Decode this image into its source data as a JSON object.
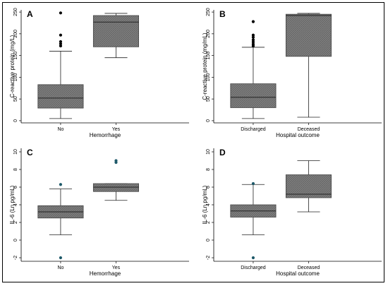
{
  "chart_data": [
    {
      "type": "box",
      "panel": "A",
      "ylabel": "C-reactive protein (mg/L)",
      "xlabel": "Hemorrhage",
      "ylim": [
        -5,
        255
      ],
      "yticks": [
        0,
        50,
        100,
        150,
        200,
        250
      ],
      "categories": [
        "No",
        "Yes"
      ],
      "boxes": [
        {
          "whisker_low": 5,
          "q1": 29,
          "median": 52,
          "q3": 83,
          "whisker_high": 160,
          "outliers": [
            172,
            177,
            182,
            197,
            248
          ]
        },
        {
          "whisker_low": 145,
          "q1": 170,
          "median": 227,
          "q3": 242,
          "whisker_high": 247,
          "outliers": []
        }
      ],
      "outlier_color": "#000000"
    },
    {
      "type": "box",
      "panel": "B",
      "ylabel": "C-reactive protein (mg/mL)",
      "xlabel": "Hospital outcome",
      "ylim": [
        -5,
        255
      ],
      "yticks": [
        0,
        50,
        100,
        150,
        200,
        250
      ],
      "categories": [
        "Discharged",
        "Deceased"
      ],
      "boxes": [
        {
          "whisker_low": 5,
          "q1": 30,
          "median": 54,
          "q3": 85,
          "whisker_high": 169,
          "outliers": [
            172,
            176,
            181,
            186,
            192,
            197,
            228
          ]
        },
        {
          "whisker_low": 8,
          "q1": 148,
          "median": 242,
          "q3": 245,
          "whisker_high": 247,
          "outliers": []
        }
      ],
      "outlier_color": "#000000"
    },
    {
      "type": "box",
      "panel": "C",
      "ylabel": "IL-6 (Ln pg/mL)",
      "xlabel": "Hemorrhage",
      "ylim": [
        -2.4,
        10.4
      ],
      "yticks": [
        -2,
        0,
        2,
        4,
        6,
        8,
        10
      ],
      "categories": [
        "No",
        "Yes"
      ],
      "boxes": [
        {
          "whisker_low": 0.6,
          "q1": 2.5,
          "median": 3.2,
          "q3": 3.9,
          "whisker_high": 5.8,
          "outliers": [
            -2.0,
            6.3
          ]
        },
        {
          "whisker_low": 4.5,
          "q1": 5.5,
          "median": 6.0,
          "q3": 6.4,
          "whisker_high": 6.4,
          "outliers": [
            8.8,
            9.0
          ]
        }
      ],
      "outlier_color": "#1f5a6a"
    },
    {
      "type": "box",
      "panel": "D",
      "ylabel": "IL-6 (Ln pg/mL)",
      "xlabel": "Hospital outcome",
      "ylim": [
        -2.4,
        10.4
      ],
      "yticks": [
        -2,
        0,
        2,
        4,
        6,
        8,
        10
      ],
      "categories": [
        "Discharged",
        "Deceased"
      ],
      "boxes": [
        {
          "whisker_low": 0.6,
          "q1": 2.6,
          "median": 3.3,
          "q3": 4.0,
          "whisker_high": 6.3,
          "outliers": [
            -2.0,
            6.4
          ]
        },
        {
          "whisker_low": 3.2,
          "q1": 4.8,
          "median": 5.2,
          "q3": 7.4,
          "whisker_high": 9.0,
          "outliers": []
        }
      ],
      "outlier_color": "#1f5a6a"
    }
  ],
  "colors": {
    "box_fill": "#7a7a7a",
    "hatch": "#5e5e5e",
    "line": "#222222"
  }
}
